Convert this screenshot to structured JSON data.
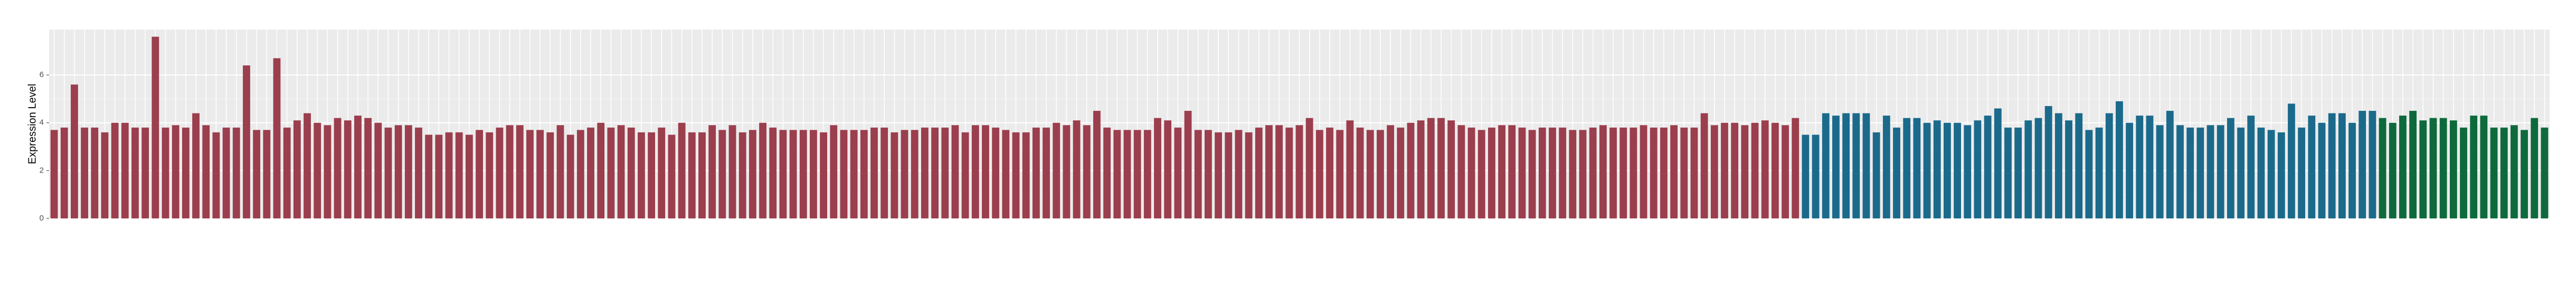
{
  "chart_data": {
    "type": "bar",
    "y_label": "Expression Level",
    "values": [
      3.7,
      3.8,
      5.6,
      3.8,
      3.8,
      3.6,
      4.0,
      4.0,
      3.8,
      3.8,
      7.6,
      3.8,
      3.9,
      3.8,
      4.4,
      3.9,
      3.6,
      3.8,
      3.8,
      6.4,
      3.7,
      3.7,
      6.7,
      3.8,
      4.1,
      4.4,
      4.0,
      3.9,
      4.2,
      4.1,
      4.3,
      4.2,
      4.0,
      3.8,
      3.9,
      3.9,
      3.8,
      3.5,
      3.5,
      3.6,
      3.6,
      3.5,
      3.7,
      3.6,
      3.8,
      3.9,
      3.9,
      3.7,
      3.7,
      3.6,
      3.9,
      3.5,
      3.7,
      3.8,
      4.0,
      3.8,
      3.9,
      3.8,
      3.6,
      3.6,
      3.8,
      3.5,
      4.0,
      3.6,
      3.6,
      3.9,
      3.7,
      3.9,
      3.6,
      3.7,
      4.0,
      3.8,
      3.7,
      3.7,
      3.7,
      3.7,
      3.6,
      3.9,
      3.7,
      3.7,
      3.7,
      3.8,
      3.8,
      3.6,
      3.7,
      3.7,
      3.8,
      3.8,
      3.8,
      3.9,
      3.6,
      3.9,
      3.9,
      3.8,
      3.7,
      3.6,
      3.6,
      3.8,
      3.8,
      4.0,
      3.9,
      4.1,
      3.9,
      4.5,
      3.8,
      3.7,
      3.7,
      3.7,
      3.7,
      4.2,
      4.1,
      3.8,
      4.5,
      3.7,
      3.7,
      3.6,
      3.6,
      3.7,
      3.6,
      3.8,
      3.9,
      3.9,
      3.8,
      3.9,
      4.2,
      3.7,
      3.8,
      3.7,
      4.1,
      3.8,
      3.7,
      3.7,
      3.9,
      3.8,
      4.0,
      4.1,
      4.2,
      4.2,
      4.1,
      3.9,
      3.8,
      3.7,
      3.8,
      3.9,
      3.9,
      3.8,
      3.7,
      3.8,
      3.8,
      3.8,
      3.7,
      3.7,
      3.8,
      3.9,
      3.8,
      3.8,
      3.8,
      3.9,
      3.8,
      3.8,
      3.9,
      3.8,
      3.8,
      4.4,
      3.9,
      4.0,
      4.0,
      3.9,
      4.0,
      4.1,
      4.0,
      3.9,
      4.2,
      3.5,
      3.5,
      4.4,
      4.3,
      4.4,
      4.4,
      4.4,
      3.6,
      4.3,
      3.8,
      4.2,
      4.2,
      4.0,
      4.1,
      4.0,
      4.0,
      3.9,
      4.1,
      4.3,
      4.6,
      3.8,
      3.8,
      4.1,
      4.2,
      4.7,
      4.4,
      4.1,
      4.4,
      3.7,
      3.8,
      4.4,
      4.9,
      4.0,
      4.3,
      4.3,
      3.9,
      4.5,
      3.9,
      3.8,
      3.8,
      3.9,
      3.9,
      4.2,
      3.8,
      4.3,
      3.8,
      3.7,
      3.6,
      4.8,
      3.8,
      4.3,
      4.0,
      4.4,
      4.4,
      4.0,
      4.5,
      4.5,
      4.2,
      4.0,
      4.3,
      4.5,
      4.1,
      4.2,
      4.2,
      4.1,
      3.8,
      4.3,
      4.3,
      3.8,
      3.8,
      3.9,
      3.7,
      4.2,
      3.8
    ],
    "colors": [
      "#9b3e4d",
      "#9b3e4d",
      "#9b3e4d",
      "#9b3e4d",
      "#9b3e4d",
      "#9b3e4d",
      "#9b3e4d",
      "#9b3e4d",
      "#9b3e4d",
      "#9b3e4d",
      "#9b3e4d",
      "#9b3e4d",
      "#9b3e4d",
      "#9b3e4d",
      "#9b3e4d",
      "#9b3e4d",
      "#9b3e4d",
      "#9b3e4d",
      "#9b3e4d",
      "#9b3e4d",
      "#9b3e4d",
      "#9b3e4d",
      "#9b3e4d",
      "#9b3e4d",
      "#9b3e4d",
      "#9b3e4d",
      "#9b3e4d",
      "#9b3e4d",
      "#9b3e4d",
      "#9b3e4d",
      "#9b3e4d",
      "#9b3e4d",
      "#9b3e4d",
      "#9b3e4d",
      "#9b3e4d",
      "#9b3e4d",
      "#9b3e4d",
      "#9b3e4d",
      "#9b3e4d",
      "#9b3e4d",
      "#9b3e4d",
      "#9b3e4d",
      "#9b3e4d",
      "#9b3e4d",
      "#9b3e4d",
      "#9b3e4d",
      "#9b3e4d",
      "#9b3e4d",
      "#9b3e4d",
      "#9b3e4d",
      "#9b3e4d",
      "#9b3e4d",
      "#9b3e4d",
      "#9b3e4d",
      "#9b3e4d",
      "#9b3e4d",
      "#9b3e4d",
      "#9b3e4d",
      "#9b3e4d",
      "#9b3e4d",
      "#9b3e4d",
      "#9b3e4d",
      "#9b3e4d",
      "#9b3e4d",
      "#9b3e4d",
      "#9b3e4d",
      "#9b3e4d",
      "#9b3e4d",
      "#9b3e4d",
      "#9b3e4d",
      "#9b3e4d",
      "#9b3e4d",
      "#9b3e4d",
      "#9b3e4d",
      "#9b3e4d",
      "#9b3e4d",
      "#9b3e4d",
      "#9b3e4d",
      "#9b3e4d",
      "#9b3e4d",
      "#9b3e4d",
      "#9b3e4d",
      "#9b3e4d",
      "#9b3e4d",
      "#9b3e4d",
      "#9b3e4d",
      "#9b3e4d",
      "#9b3e4d",
      "#9b3e4d",
      "#9b3e4d",
      "#9b3e4d",
      "#9b3e4d",
      "#9b3e4d",
      "#9b3e4d",
      "#9b3e4d",
      "#9b3e4d",
      "#9b3e4d",
      "#9b3e4d",
      "#9b3e4d",
      "#9b3e4d",
      "#9b3e4d",
      "#9b3e4d",
      "#9b3e4d",
      "#9b3e4d",
      "#9b3e4d",
      "#9b3e4d",
      "#9b3e4d",
      "#9b3e4d",
      "#9b3e4d",
      "#9b3e4d",
      "#9b3e4d",
      "#9b3e4d",
      "#9b3e4d",
      "#9b3e4d",
      "#9b3e4d",
      "#9b3e4d",
      "#9b3e4d",
      "#9b3e4d",
      "#9b3e4d",
      "#9b3e4d",
      "#9b3e4d",
      "#9b3e4d",
      "#9b3e4d",
      "#9b3e4d",
      "#9b3e4d",
      "#9b3e4d",
      "#9b3e4d",
      "#9b3e4d",
      "#9b3e4d",
      "#9b3e4d",
      "#9b3e4d",
      "#9b3e4d",
      "#9b3e4d",
      "#9b3e4d",
      "#9b3e4d",
      "#9b3e4d",
      "#9b3e4d",
      "#9b3e4d",
      "#9b3e4d",
      "#9b3e4d",
      "#9b3e4d",
      "#9b3e4d",
      "#9b3e4d",
      "#9b3e4d",
      "#9b3e4d",
      "#9b3e4d",
      "#9b3e4d",
      "#9b3e4d",
      "#9b3e4d",
      "#9b3e4d",
      "#9b3e4d",
      "#9b3e4d",
      "#9b3e4d",
      "#9b3e4d",
      "#9b3e4d",
      "#9b3e4d",
      "#9b3e4d",
      "#9b3e4d",
      "#9b3e4d",
      "#9b3e4d",
      "#9b3e4d",
      "#9b3e4d",
      "#9b3e4d",
      "#9b3e4d",
      "#9b3e4d",
      "#9b3e4d",
      "#9b3e4d",
      "#9b3e4d",
      "#9b3e4d",
      "#9b3e4d",
      "#9b3e4d",
      "#9b3e4d",
      "#9b3e4d",
      "#1b6a8b",
      "#1b6a8b",
      "#1b6a8b",
      "#1b6a8b",
      "#1b6a8b",
      "#1b6a8b",
      "#1b6a8b",
      "#1b6a8b",
      "#1b6a8b",
      "#1b6a8b",
      "#1b6a8b",
      "#1b6a8b",
      "#1b6a8b",
      "#1b6a8b",
      "#1b6a8b",
      "#1b6a8b",
      "#1b6a8b",
      "#1b6a8b",
      "#1b6a8b",
      "#1b6a8b",
      "#1b6a8b",
      "#1b6a8b",
      "#1b6a8b",
      "#1b6a8b",
      "#1b6a8b",
      "#1b6a8b",
      "#1b6a8b",
      "#1b6a8b",
      "#1b6a8b",
      "#1b6a8b",
      "#1b6a8b",
      "#1b6a8b",
      "#1b6a8b",
      "#1b6a8b",
      "#1b6a8b",
      "#1b6a8b",
      "#1b6a8b",
      "#1b6a8b",
      "#1b6a8b",
      "#1b6a8b",
      "#1b6a8b",
      "#1b6a8b",
      "#1b6a8b",
      "#1b6a8b",
      "#1b6a8b",
      "#1b6a8b",
      "#1b6a8b",
      "#1b6a8b",
      "#1b6a8b",
      "#1b6a8b",
      "#1b6a8b",
      "#1b6a8b",
      "#1b6a8b",
      "#1b6a8b",
      "#1b6a8b",
      "#1b6a8b",
      "#1b6a8b",
      "#0e6a3c",
      "#0e6a3c",
      "#0e6a3c",
      "#0e6a3c",
      "#0e6a3c",
      "#0e6a3c",
      "#0e6a3c",
      "#0e6a3c",
      "#0e6a3c",
      "#0e6a3c",
      "#0e6a3c",
      "#0e6a3c",
      "#0e6a3c",
      "#0e6a3c",
      "#0e6a3c",
      "#0e6a3c",
      "#0e6a3c"
    ],
    "ylim": [
      0,
      7.9
    ],
    "yticks": [
      0,
      2,
      4,
      6
    ],
    "grid": true
  }
}
